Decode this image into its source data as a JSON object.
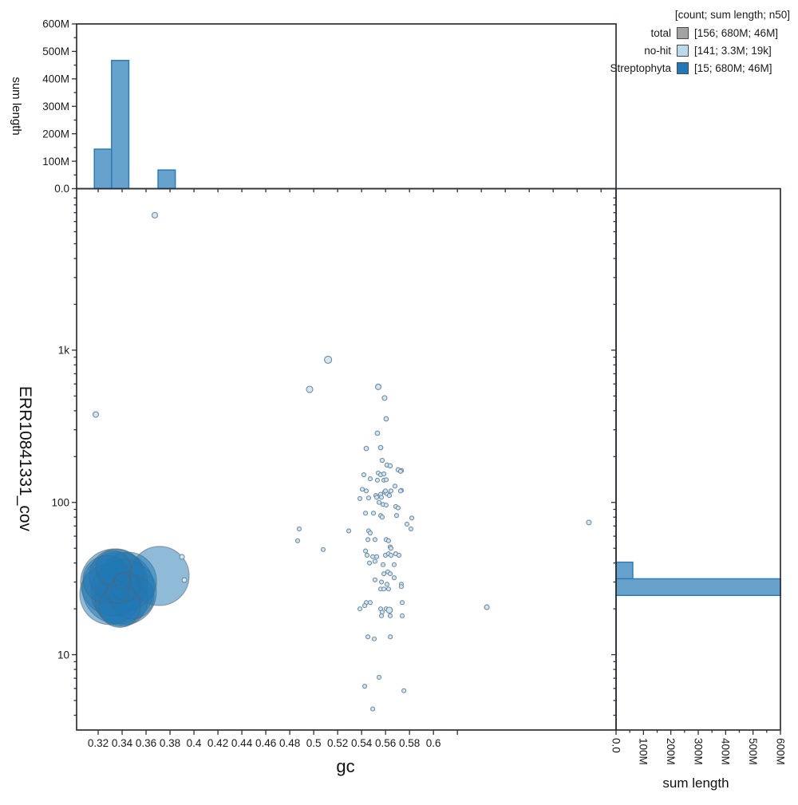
{
  "legend": {
    "header": "[count; sum length; n50]",
    "rows": [
      {
        "label": "total",
        "color": "#a3a3a3",
        "values": "[156; 680M; 46M]"
      },
      {
        "label": "no-hit",
        "color": "#bad9ec",
        "values": "[141; 3.3M; 19k]"
      },
      {
        "label": "Streptophyta",
        "color": "#2478b5",
        "values": "[15; 680M; 46M]"
      }
    ]
  },
  "titles": {
    "main_x": "gc",
    "main_y": "ERR10841331_cov",
    "top_hist_y": "sum length",
    "right_hist_x": "sum length"
  },
  "colors": {
    "axis": "#2b303a",
    "tick_text": "#1a1a1a",
    "hist_fill": "#5a9ac8",
    "hist_stroke": "#2c7cb8",
    "streptophyta_fill": "#1f77b4",
    "streptophyta_stroke": "#5a646e",
    "nohit_fill": "#d4e6f2",
    "nohit_stroke": "#6d8ba1"
  },
  "chart_data": [
    {
      "type": "scatter",
      "xlabel": "gc",
      "ylabel": "ERR10841331_cov",
      "xscale": "linear",
      "yscale": "log",
      "xlim": [
        0.302,
        0.7525
      ],
      "ylim": [
        3.2,
        11500
      ],
      "grid": false,
      "x_ticks": {
        "values": [
          0.32,
          0.34,
          0.36,
          0.38,
          0.4,
          0.42,
          0.44,
          0.46,
          0.48,
          0.5,
          0.52,
          0.54,
          0.56,
          0.58,
          0.6,
          0.62
        ],
        "labels": [
          "0.32",
          "0.34",
          "0.36",
          "0.38",
          "0.4",
          "0.42",
          "0.44",
          "0.46",
          "0.48",
          "0.5",
          "0.52",
          "0.54",
          "0.56",
          "0.58",
          "0.6",
          ""
        ]
      },
      "top_edge_ticks": [
        0.32,
        0.34,
        0.36,
        0.38,
        0.4,
        0.42,
        0.44,
        0.46,
        0.48,
        0.5,
        0.52,
        0.54,
        0.56,
        0.58,
        0.6,
        0.62,
        0.64,
        0.66,
        0.68,
        0.7,
        0.72,
        0.74
      ],
      "y_ticks": {
        "values": [
          10,
          100,
          1000
        ],
        "labels": [
          "10",
          "100",
          "1k"
        ]
      },
      "y_minor": [
        4,
        5,
        6,
        7,
        8,
        9,
        20,
        30,
        40,
        50,
        60,
        70,
        80,
        90,
        200,
        300,
        400,
        500,
        600,
        700,
        800,
        900,
        2000,
        3000,
        4000,
        5000,
        6000,
        7000,
        8000,
        9000,
        10000
      ],
      "series": [
        {
          "name": "Streptophyta",
          "style": "bubble",
          "points": [
            [
              0.3367,
              27.4,
              45
            ],
            [
              0.3333,
              29.8,
              42
            ],
            [
              0.3413,
              25.8,
              41
            ],
            [
              0.33,
              24.9,
              38
            ],
            [
              0.3447,
              30.5,
              36
            ],
            [
              0.3353,
              32.8,
              34
            ],
            [
              0.3393,
              22.9,
              33
            ],
            [
              0.3273,
              31.2,
              30
            ],
            [
              0.348,
              24.0,
              28
            ],
            [
              0.338,
              20.7,
              26
            ],
            [
              0.3327,
              37.0,
              22
            ],
            [
              0.3433,
              28.0,
              18
            ],
            [
              0.336,
              25.8,
              14
            ],
            [
              0.34,
              30.5,
              10
            ],
            [
              0.3713,
              32.9,
              37
            ]
          ]
        },
        {
          "name": "no-hit",
          "style": "dot",
          "default_r": 2.5,
          "points": [
            [
              0.3673,
              7700,
              3.5
            ],
            [
              0.318,
              378,
              3.5
            ],
            [
              0.512,
              865,
              4.5
            ],
            [
              0.4966,
              553,
              4
            ],
            [
              0.7298,
              73.8,
              3
            ],
            [
              0.6446,
              20.5,
              3
            ],
            [
              0.39,
              43.9,
              3
            ],
            [
              0.392,
              30.9,
              3
            ],
            [
              0.5539,
              574,
              3.5
            ],
            [
              0.5592,
              485,
              3
            ],
            [
              0.5605,
              354,
              2.8
            ],
            [
              0.5532,
              285,
              2.8
            ],
            [
              0.5439,
              226,
              2.8
            ],
            [
              0.5559,
              229,
              2.8
            ],
            [
              0.5572,
              189,
              2.6
            ],
            [
              0.5612,
              176,
              2.6
            ],
            [
              0.5639,
              174,
              2.6
            ],
            [
              0.5705,
              164,
              2.6
            ],
            [
              0.5732,
              162,
              2.6
            ],
            [
              0.5419,
              152
            ],
            [
              0.5539,
              156
            ],
            [
              0.5559,
              152
            ],
            [
              0.5586,
              154
            ],
            [
              0.5472,
              143
            ],
            [
              0.5532,
              140
            ],
            [
              0.5586,
              140
            ],
            [
              0.5606,
              141
            ],
            [
              0.5406,
              122
            ],
            [
              0.5439,
              119
            ],
            [
              0.5679,
              128
            ],
            [
              0.5732,
              120
            ],
            [
              0.5386,
              106
            ],
            [
              0.5459,
              107
            ],
            [
              0.5519,
              111
            ],
            [
              0.5559,
              113
            ],
            [
              0.5592,
              117
            ],
            [
              0.5612,
              114
            ],
            [
              0.5632,
              111
            ],
            [
              0.5725,
              160
            ],
            [
              0.5526,
              108
            ],
            [
              0.5566,
              108
            ],
            [
              0.5599,
              119
            ],
            [
              0.5645,
              119
            ],
            [
              0.5725,
              119
            ],
            [
              0.5546,
              100
            ],
            [
              0.5579,
              97
            ],
            [
              0.5605,
              96
            ],
            [
              0.5685,
              94
            ],
            [
              0.5705,
              92
            ],
            [
              0.5433,
              85
            ],
            [
              0.5499,
              85
            ],
            [
              0.5559,
              82
            ],
            [
              0.5572,
              80
            ],
            [
              0.5692,
              82
            ],
            [
              0.5819,
              79
            ],
            [
              0.5779,
              72
            ],
            [
              0.5812,
              67
            ],
            [
              0.5293,
              65
            ],
            [
              0.5459,
              65
            ],
            [
              0.5472,
              63
            ],
            [
              0.5453,
              57
            ],
            [
              0.5512,
              57
            ],
            [
              0.5605,
              57
            ],
            [
              0.5625,
              56
            ],
            [
              0.5639,
              51
            ],
            [
              0.5645,
              50
            ],
            [
              0.5433,
              48
            ],
            [
              0.5446,
              45
            ],
            [
              0.5493,
              44
            ],
            [
              0.5526,
              44
            ],
            [
              0.5599,
              45
            ],
            [
              0.5625,
              46
            ],
            [
              0.5645,
              45
            ],
            [
              0.5685,
              46
            ],
            [
              0.5712,
              45
            ],
            [
              0.5466,
              40
            ],
            [
              0.5512,
              41
            ],
            [
              0.5579,
              39
            ],
            [
              0.5672,
              39
            ],
            [
              0.5586,
              34
            ],
            [
              0.5619,
              35
            ],
            [
              0.5639,
              34
            ],
            [
              0.5672,
              32
            ],
            [
              0.5512,
              31
            ],
            [
              0.5566,
              30
            ],
            [
              0.5612,
              29
            ],
            [
              0.5732,
              29
            ],
            [
              0.5559,
              27
            ],
            [
              0.5586,
              27
            ],
            [
              0.5625,
              27
            ],
            [
              0.5732,
              28
            ],
            [
              0.5439,
              22
            ],
            [
              0.5472,
              22
            ],
            [
              0.5386,
              20
            ],
            [
              0.5426,
              21
            ],
            [
              0.5559,
              20
            ],
            [
              0.5572,
              19
            ],
            [
              0.5605,
              20
            ],
            [
              0.5739,
              22
            ],
            [
              0.5632,
              19.6,
              3.8
            ],
            [
              0.5566,
              18
            ],
            [
              0.5639,
              18
            ],
            [
              0.5739,
              18
            ],
            [
              0.4879,
              67
            ],
            [
              0.4866,
              56
            ],
            [
              0.5079,
              49
            ],
            [
              0.5453,
              13.1
            ],
            [
              0.5506,
              12.7
            ],
            [
              0.564,
              13.1
            ],
            [
              0.5546,
              7.1
            ],
            [
              0.5426,
              6.2
            ],
            [
              0.5753,
              5.8
            ],
            [
              0.5493,
              4.4
            ]
          ]
        }
      ]
    },
    {
      "type": "histogram",
      "orientation": "vertical",
      "ylabel": "sum length",
      "ylim": [
        0,
        600
      ],
      "y_ticks": {
        "values": [
          0,
          100,
          200,
          300,
          400,
          500,
          600
        ],
        "labels": [
          "0.0",
          "100M",
          "200M",
          "300M",
          "400M",
          "500M",
          "600M"
        ]
      },
      "y_minor": [
        50,
        150,
        250,
        350,
        450,
        550
      ],
      "bins": [
        [
          0.3168,
          0.3312,
          144
        ],
        [
          0.3312,
          0.3456,
          467
        ],
        [
          0.37,
          0.3844,
          68
        ]
      ],
      "bin_unit": "gc",
      "value_unit": "M"
    },
    {
      "type": "histogram",
      "orientation": "horizontal",
      "xlabel": "sum length",
      "xlim": [
        0,
        600
      ],
      "x_ticks": {
        "values": [
          0,
          100,
          200,
          300,
          400,
          500,
          600
        ],
        "labels": [
          "0.0",
          "100M",
          "200M",
          "300M",
          "400M",
          "500M",
          "600M"
        ]
      },
      "x_minor": [
        50,
        150,
        250,
        350,
        450,
        550
      ],
      "bins": [
        [
          31.5,
          40.5,
          61
        ],
        [
          24.5,
          31.5,
          600
        ]
      ],
      "bin_unit": "coverage",
      "value_unit": "M"
    }
  ]
}
